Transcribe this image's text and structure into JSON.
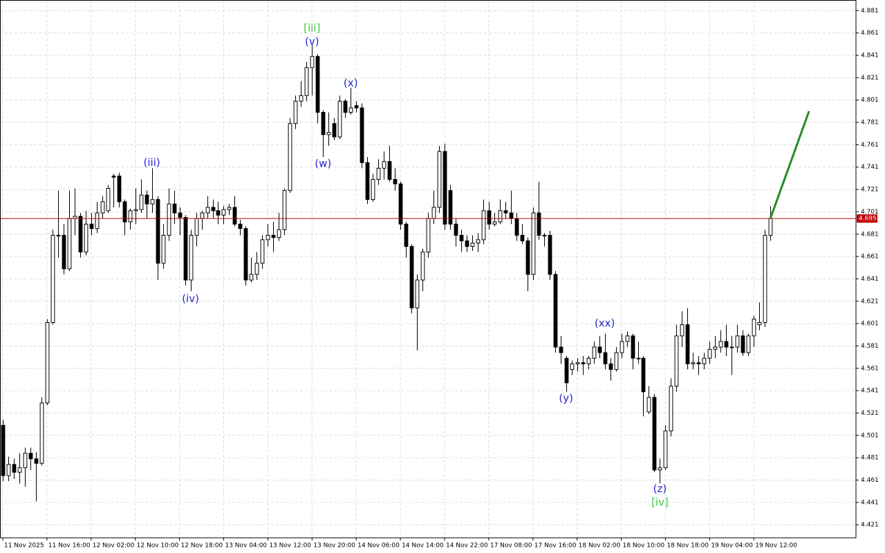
{
  "chart_data": {
    "type": "candlestick",
    "open": [
      4.51,
      4.465,
      4.475,
      4.468,
      4.472,
      4.485,
      4.48,
      4.476,
      4.53,
      4.602,
      4.68,
      4.68,
      4.65,
      4.695,
      4.697,
      4.665,
      4.69,
      4.686,
      4.7,
      4.702,
      4.733,
      4.733,
      4.71,
      4.692,
      4.702,
      4.703,
      4.716,
      4.708,
      4.712,
      4.655,
      4.68,
      4.708,
      4.7,
      4.696,
      4.64,
      4.68,
      4.695,
      4.7,
      4.705,
      4.702,
      4.698,
      4.703,
      4.705,
      4.69,
      4.686,
      4.64,
      4.645,
      4.655,
      4.676,
      4.68,
      4.678,
      4.685,
      4.72,
      4.78,
      4.8,
      4.805,
      4.83,
      4.84,
      4.79,
      4.77,
      4.78,
      4.768,
      4.8,
      4.79,
      4.796,
      4.794,
      4.745,
      4.712,
      4.73,
      4.74,
      4.746,
      4.73,
      4.726,
      4.69,
      4.67,
      4.615,
      4.64,
      4.665,
      4.695,
      4.705,
      4.755,
      4.72,
      4.69,
      4.68,
      4.675,
      4.67,
      4.673,
      4.676,
      4.702,
      4.69,
      4.692,
      4.702,
      4.7,
      4.695,
      4.68,
      4.675,
      4.645,
      4.7,
      4.68,
      4.68,
      4.645,
      4.58,
      4.57,
      4.56,
      4.565,
      4.566,
      4.565,
      4.57,
      4.58,
      4.575,
      4.565,
      4.56,
      4.575,
      4.585,
      4.59,
      4.57,
      4.57,
      4.522,
      4.535,
      4.47,
      4.472,
      4.505,
      4.545,
      4.59,
      4.6,
      4.565,
      4.566,
      4.565,
      4.57,
      4.578,
      4.58,
      4.585,
      4.58,
      4.58,
      4.59,
      4.575,
      4.59,
      4.6,
      4.602,
      4.68
    ],
    "high": [
      4.515,
      4.482,
      4.48,
      4.485,
      4.49,
      4.49,
      4.486,
      4.535,
      4.605,
      4.685,
      4.72,
      4.69,
      4.72,
      4.722,
      4.7,
      4.702,
      4.7,
      4.71,
      4.715,
      4.725,
      4.735,
      4.736,
      4.712,
      4.704,
      4.722,
      4.73,
      4.72,
      4.74,
      4.715,
      4.69,
      4.722,
      4.72,
      4.705,
      4.698,
      4.685,
      4.7,
      4.702,
      4.715,
      4.712,
      4.71,
      4.706,
      4.708,
      4.715,
      4.694,
      4.688,
      4.66,
      4.665,
      4.68,
      4.69,
      4.692,
      4.7,
      4.722,
      4.785,
      4.805,
      4.818,
      4.835,
      4.85,
      4.842,
      4.792,
      4.79,
      4.785,
      4.805,
      4.802,
      4.812,
      4.8,
      4.798,
      4.75,
      4.735,
      4.748,
      4.755,
      4.76,
      4.74,
      4.728,
      4.692,
      4.672,
      4.645,
      4.668,
      4.7,
      4.72,
      4.76,
      4.762,
      4.725,
      4.695,
      4.685,
      4.68,
      4.68,
      4.682,
      4.712,
      4.71,
      4.7,
      4.712,
      4.71,
      4.72,
      4.7,
      4.69,
      4.678,
      4.705,
      4.728,
      4.682,
      4.684,
      4.648,
      4.59,
      4.572,
      4.568,
      4.57,
      4.572,
      4.572,
      4.585,
      4.59,
      4.592,
      4.57,
      4.58,
      4.592,
      4.594,
      4.592,
      4.585,
      4.572,
      4.545,
      4.538,
      4.48,
      4.51,
      4.552,
      4.6,
      4.612,
      4.615,
      4.575,
      4.572,
      4.575,
      4.585,
      4.59,
      4.595,
      4.6,
      4.59,
      4.6,
      4.595,
      4.592,
      4.608,
      4.62,
      4.685,
      4.706
    ],
    "low": [
      4.46,
      4.46,
      4.462,
      4.458,
      4.455,
      4.47,
      4.442,
      4.474,
      4.528,
      4.6,
      4.66,
      4.645,
      4.648,
      4.68,
      4.66,
      4.662,
      4.68,
      4.682,
      4.695,
      4.7,
      4.705,
      4.705,
      4.68,
      4.685,
      4.69,
      4.7,
      4.695,
      4.7,
      4.64,
      4.65,
      4.675,
      4.69,
      4.68,
      4.635,
      4.63,
      4.67,
      4.685,
      4.695,
      4.695,
      4.69,
      4.69,
      4.698,
      4.688,
      4.68,
      4.635,
      4.638,
      4.64,
      4.65,
      4.67,
      4.665,
      4.675,
      4.68,
      4.718,
      4.775,
      4.795,
      4.8,
      4.805,
      4.78,
      4.75,
      4.76,
      4.765,
      4.766,
      4.785,
      4.788,
      4.79,
      4.74,
      4.708,
      4.71,
      4.725,
      4.73,
      4.728,
      4.72,
      4.685,
      4.66,
      4.61,
      4.577,
      4.63,
      4.66,
      4.69,
      4.7,
      4.685,
      4.685,
      4.67,
      4.665,
      4.665,
      4.666,
      4.665,
      4.672,
      4.685,
      4.688,
      4.69,
      4.695,
      4.69,
      4.675,
      4.672,
      4.63,
      4.64,
      4.676,
      4.67,
      4.64,
      4.575,
      4.565,
      4.54,
      4.555,
      4.558,
      4.555,
      4.56,
      4.565,
      4.57,
      4.56,
      4.55,
      4.558,
      4.57,
      4.58,
      4.56,
      4.565,
      4.518,
      4.52,
      4.468,
      4.458,
      4.47,
      4.5,
      4.54,
      4.58,
      4.56,
      4.56,
      4.555,
      4.56,
      4.565,
      4.57,
      4.575,
      4.572,
      4.555,
      4.575,
      4.572,
      4.572,
      4.58,
      4.595,
      4.598,
      4.675
    ],
    "close": [
      4.465,
      4.475,
      4.468,
      4.472,
      4.485,
      4.48,
      4.476,
      4.53,
      4.602,
      4.68,
      4.68,
      4.65,
      4.695,
      4.697,
      4.665,
      4.69,
      4.686,
      4.7,
      4.71,
      4.722,
      4.732,
      4.71,
      4.692,
      4.702,
      4.703,
      4.716,
      4.708,
      4.712,
      4.655,
      4.68,
      4.708,
      4.7,
      4.696,
      4.64,
      4.68,
      4.695,
      4.7,
      4.705,
      4.702,
      4.698,
      4.703,
      4.705,
      4.69,
      4.686,
      4.64,
      4.645,
      4.655,
      4.676,
      4.68,
      4.678,
      4.685,
      4.72,
      4.78,
      4.8,
      4.805,
      4.83,
      4.84,
      4.79,
      4.77,
      4.772,
      4.768,
      4.8,
      4.79,
      4.794,
      4.794,
      4.745,
      4.712,
      4.73,
      4.74,
      4.746,
      4.73,
      4.726,
      4.69,
      4.67,
      4.615,
      4.64,
      4.665,
      4.695,
      4.705,
      4.755,
      4.69,
      4.69,
      4.68,
      4.675,
      4.67,
      4.673,
      4.676,
      4.702,
      4.69,
      4.692,
      4.702,
      4.7,
      4.695,
      4.68,
      4.675,
      4.645,
      4.7,
      4.68,
      4.68,
      4.645,
      4.58,
      4.575,
      4.548,
      4.565,
      4.566,
      4.565,
      4.57,
      4.58,
      4.575,
      4.565,
      4.56,
      4.575,
      4.585,
      4.59,
      4.57,
      4.57,
      4.54,
      4.535,
      4.47,
      4.472,
      4.505,
      4.545,
      4.59,
      4.6,
      4.565,
      4.566,
      4.565,
      4.57,
      4.578,
      4.58,
      4.585,
      4.58,
      4.58,
      4.59,
      4.575,
      4.59,
      4.605,
      4.602,
      4.68,
      4.695
    ],
    "xlim": [
      -0.5,
      154.5
    ],
    "xticks": [
      {
        "value": 0,
        "label": "11 Nov 2025"
      },
      {
        "value": 8,
        "label": "11 Nov 16:00"
      },
      {
        "value": 16,
        "label": "12 Nov 02:00"
      },
      {
        "value": 24,
        "label": "12 Nov 10:00"
      },
      {
        "value": 32,
        "label": "12 Nov 18:00"
      },
      {
        "value": 40,
        "label": "13 Nov 04:00"
      },
      {
        "value": 48,
        "label": "13 Nov 12:00"
      },
      {
        "value": 56,
        "label": "13 Nov 20:00"
      },
      {
        "value": 64,
        "label": "14 Nov 06:00"
      },
      {
        "value": 72,
        "label": "14 Nov 14:00"
      },
      {
        "value": 80,
        "label": "14 Nov 22:00"
      },
      {
        "value": 88,
        "label": "17 Nov 08:00"
      },
      {
        "value": 96,
        "label": "17 Nov 16:00"
      },
      {
        "value": 104,
        "label": "18 Nov 02:00"
      },
      {
        "value": 112,
        "label": "18 Nov 10:00"
      },
      {
        "value": 120,
        "label": "18 Nov 18:00"
      },
      {
        "value": 128,
        "label": "19 Nov 04:00"
      },
      {
        "value": 136,
        "label": "19 Nov 12:00"
      }
    ],
    "ylim": [
      4.40935,
      4.8905
    ],
    "yticks": [
      4.421,
      4.441,
      4.461,
      4.481,
      4.501,
      4.521,
      4.541,
      4.561,
      4.581,
      4.601,
      4.621,
      4.641,
      4.661,
      4.681,
      4.701,
      4.721,
      4.741,
      4.761,
      4.781,
      4.801,
      4.821,
      4.841,
      4.861,
      4.881
    ],
    "grid": true,
    "current_price": 4.695,
    "current_price_color": "#c00000",
    "forecast": {
      "x": [
        139,
        146
      ],
      "y": [
        4.695,
        4.791
      ],
      "color": "#228b22"
    },
    "annotations": [
      {
        "text": "[iii]",
        "x": 56,
        "y": 4.865,
        "color": "#3cc83c"
      },
      {
        "text": "(v)",
        "x": 56,
        "y": 4.853,
        "color": "#2424d0"
      },
      {
        "text": "(x)",
        "x": 63,
        "y": 4.816,
        "color": "#2424d0"
      },
      {
        "text": "(w)",
        "x": 58,
        "y": 4.744,
        "color": "#2424d0"
      },
      {
        "text": "(iii)",
        "x": 27,
        "y": 4.745,
        "color": "#2424d0"
      },
      {
        "text": "(iv)",
        "x": 34,
        "y": 4.623,
        "color": "#2424d0"
      },
      {
        "text": "(y)",
        "x": 102,
        "y": 4.534,
        "color": "#2424d0"
      },
      {
        "text": "(xx)",
        "x": 109,
        "y": 4.601,
        "color": "#2424d0"
      },
      {
        "text": "(z)",
        "x": 119,
        "y": 4.453,
        "color": "#2424d0"
      },
      {
        "text": "[iv]",
        "x": 119,
        "y": 4.441,
        "color": "#3cc83c"
      }
    ]
  }
}
